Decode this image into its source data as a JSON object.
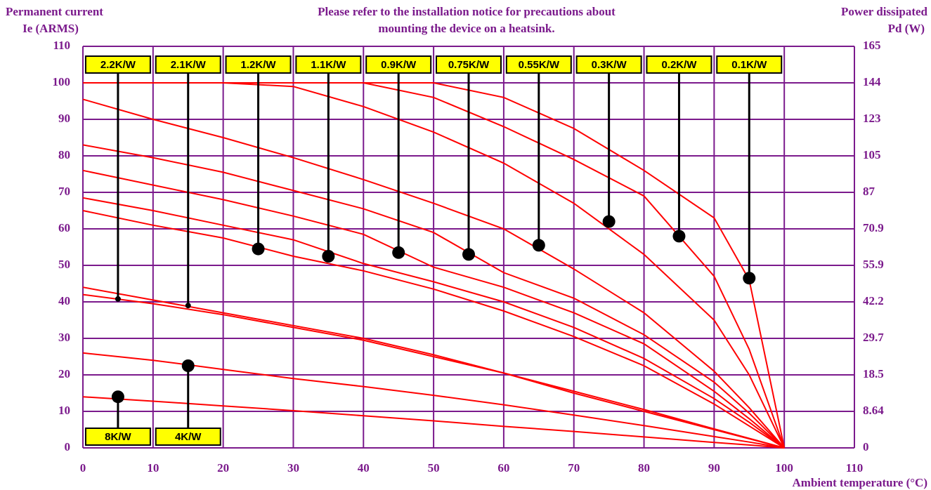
{
  "chart_data": {
    "type": "line",
    "title_left": [
      "Permanent current",
      "Ie (ARMS)"
    ],
    "title_center": [
      "Please refer to the installation notice for precautions about",
      "mounting the device on a heatsink."
    ],
    "title_right": [
      "Power dissipated",
      "Pd (W)"
    ],
    "x_label": "Ambient temperature (°C)",
    "xlim": [
      0,
      110
    ],
    "xticks": [
      0,
      10,
      20,
      30,
      40,
      50,
      60,
      70,
      80,
      90,
      100,
      110
    ],
    "ylim": [
      0,
      110
    ],
    "yticks": [
      0,
      10,
      20,
      30,
      40,
      50,
      60,
      70,
      80,
      90,
      100,
      110
    ],
    "y2_labels": [
      "0",
      "8.64",
      "18.5",
      "29.7",
      "42.2",
      "55.9",
      "70.9",
      "87",
      "105",
      "123",
      "144",
      "165"
    ],
    "grid": true,
    "grid_color": "#7b1a8c",
    "line_color": "#ff0000",
    "label_fill": "#ffff00",
    "x": [
      0,
      10,
      20,
      30,
      40,
      50,
      60,
      70,
      80,
      90,
      95,
      100
    ],
    "series": [
      {
        "name": "8K/W",
        "label_position": "bottom",
        "marker_size": "large",
        "marker_x": 5,
        "marker_y": 14,
        "values": [
          14,
          12.8,
          11.5,
          10.2,
          8.8,
          7.4,
          5.9,
          4.5,
          3,
          1.5,
          0.8,
          0
        ]
      },
      {
        "name": "4K/W",
        "label_position": "bottom",
        "marker_size": "large",
        "marker_x": 15,
        "marker_y": 22.5,
        "values": [
          26,
          24,
          21.5,
          19,
          16.8,
          14.4,
          11.8,
          9,
          6.1,
          3.1,
          1.6,
          0
        ]
      },
      {
        "name": "2.2K/W",
        "label_position": "top",
        "marker_size": "small",
        "marker_x": 5,
        "marker_y": 40.8,
        "values": [
          44,
          40.5,
          37,
          33.5,
          30,
          25.5,
          20.5,
          15.5,
          10.5,
          5.2,
          2.6,
          0
        ]
      },
      {
        "name": "2.1K/W",
        "label_position": "top",
        "marker_size": "small",
        "marker_x": 15,
        "marker_y": 39,
        "values": [
          42,
          39.5,
          36.5,
          33,
          29.5,
          25,
          20.5,
          15,
          10,
          5,
          2.5,
          0
        ]
      },
      {
        "name": "1.2K/W",
        "label_position": "top",
        "marker_size": "large",
        "marker_x": 25,
        "marker_y": 54.5,
        "values": [
          65,
          61,
          57.5,
          52.5,
          48.5,
          43.5,
          37.5,
          30.5,
          22.5,
          12,
          6,
          0
        ]
      },
      {
        "name": "1.1K/W",
        "label_position": "top",
        "marker_size": "large",
        "marker_x": 35,
        "marker_y": 52.5,
        "values": [
          68.5,
          65,
          61,
          57,
          50.5,
          45.5,
          40,
          33,
          24.5,
          13.5,
          7,
          0
        ]
      },
      {
        "name": "0.9K/W",
        "label_position": "top",
        "marker_size": "large",
        "marker_x": 45,
        "marker_y": 53.5,
        "values": [
          76,
          72,
          68,
          63.5,
          58.5,
          49.5,
          44,
          37,
          28.5,
          15.5,
          8,
          0
        ]
      },
      {
        "name": "0.75K/W",
        "label_position": "top",
        "marker_size": "large",
        "marker_x": 55,
        "marker_y": 53,
        "values": [
          83,
          79.5,
          75.5,
          70.5,
          65.5,
          59,
          48,
          41,
          31,
          18,
          9.5,
          0
        ]
      },
      {
        "name": "0.55K/W",
        "label_position": "top",
        "marker_size": "large",
        "marker_x": 65,
        "marker_y": 55.5,
        "values": [
          95.5,
          90,
          85,
          79.5,
          73.5,
          67,
          60,
          49,
          37,
          21,
          11,
          0
        ]
      },
      {
        "name": "0.3K/W",
        "label_position": "top",
        "marker_size": "large",
        "marker_x": 75,
        "marker_y": 62,
        "values": [
          100,
          100,
          100,
          99,
          93.5,
          86.5,
          78,
          67,
          53,
          35,
          20,
          0
        ]
      },
      {
        "name": "0.2K/W",
        "label_position": "top",
        "marker_size": "large",
        "marker_x": 85,
        "marker_y": 58,
        "values": [
          100,
          100,
          100,
          100,
          100,
          96,
          88,
          79,
          69,
          47,
          27,
          0
        ]
      },
      {
        "name": "0.1K/W",
        "label_position": "top",
        "marker_size": "large",
        "marker_x": 95,
        "marker_y": 46.5,
        "values": [
          100,
          100,
          100,
          100,
          100,
          100,
          96,
          87.5,
          76,
          63,
          46,
          0
        ]
      }
    ]
  }
}
